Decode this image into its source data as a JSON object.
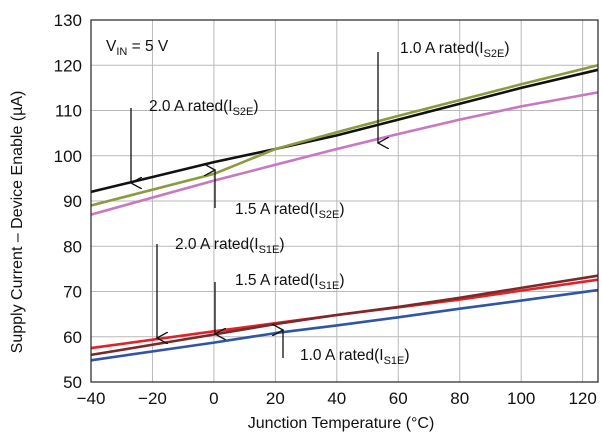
{
  "chart_data": {
    "type": "line",
    "title": "",
    "xlabel": "Junction Temperature (°C)",
    "ylabel": "Supply Current – Device Enable (µA)",
    "xlim": [
      -40,
      125
    ],
    "ylim": [
      50,
      130
    ],
    "xticks": [
      -40,
      -20,
      0,
      20,
      40,
      60,
      80,
      100,
      120
    ],
    "yticks": [
      50,
      60,
      70,
      80,
      90,
      100,
      110,
      120,
      130
    ],
    "xtick_labels": [
      "−40",
      "−20",
      "0",
      "20",
      "40",
      "60",
      "80",
      "100",
      "120"
    ],
    "ytick_labels": [
      "50",
      "60",
      "70",
      "80",
      "90",
      "100",
      "110",
      "120",
      "130"
    ],
    "grid": true,
    "series": [
      {
        "name": "2.0 A rated(I_S2E)",
        "color": "#111111",
        "x": [
          -40,
          0,
          20,
          40,
          60,
          80,
          100,
          125
        ],
        "y": [
          92,
          98.6,
          101.5,
          104.5,
          108,
          111.5,
          115,
          119
        ]
      },
      {
        "name": "1.0 A rated(I_S2E)",
        "color": "#8a9a3c",
        "x": [
          -40,
          0,
          20,
          40,
          60,
          80,
          100,
          125
        ],
        "y": [
          89,
          96,
          101.5,
          105.2,
          108.8,
          112.3,
          115.8,
          120
        ]
      },
      {
        "name": "1.5 A rated(I_S2E)",
        "color": "#c878c0",
        "x": [
          -40,
          0,
          20,
          40,
          60,
          80,
          100,
          125
        ],
        "y": [
          87,
          94.5,
          98,
          101.5,
          104.8,
          108,
          110.9,
          114
        ]
      },
      {
        "name": "2.0 A rated(I_S1E)",
        "color": "#e0232a",
        "x": [
          -40,
          0,
          20,
          40,
          60,
          80,
          100,
          125
        ],
        "y": [
          57.5,
          61.2,
          63,
          64.8,
          66.5,
          68.2,
          70.2,
          72.6
        ]
      },
      {
        "name": "1.5 A rated(I_S1E)",
        "color": "#7a2a28",
        "x": [
          -40,
          0,
          20,
          40,
          60,
          80,
          100,
          125
        ],
        "y": [
          56,
          60.5,
          62.8,
          64.8,
          66.6,
          68.6,
          70.8,
          73.5
        ]
      },
      {
        "name": "1.0 A rated(I_S1E)",
        "color": "#2f55a4",
        "x": [
          -40,
          0,
          20,
          40,
          60,
          80,
          100,
          125
        ],
        "y": [
          54.8,
          58.7,
          60.8,
          62.5,
          64.3,
          66.2,
          68,
          70.3
        ]
      }
    ],
    "annotations": [
      {
        "main": "V",
        "sub": "IN",
        "rest": " = 5 V"
      },
      {
        "main": "1.0 A rated(I",
        "sub": "S2E",
        "rest": ")"
      },
      {
        "main": "2.0 A rated(I",
        "sub": "S2E",
        "rest": ")"
      },
      {
        "main": "1.5 A rated(I",
        "sub": "S2E",
        "rest": ")"
      },
      {
        "main": "2.0 A rated(I",
        "sub": "S1E",
        "rest": ")"
      },
      {
        "main": "1.5 A rated(I",
        "sub": "S1E",
        "rest": ")"
      },
      {
        "main": "1.0 A rated(I",
        "sub": "S1E",
        "rest": ")"
      }
    ]
  }
}
